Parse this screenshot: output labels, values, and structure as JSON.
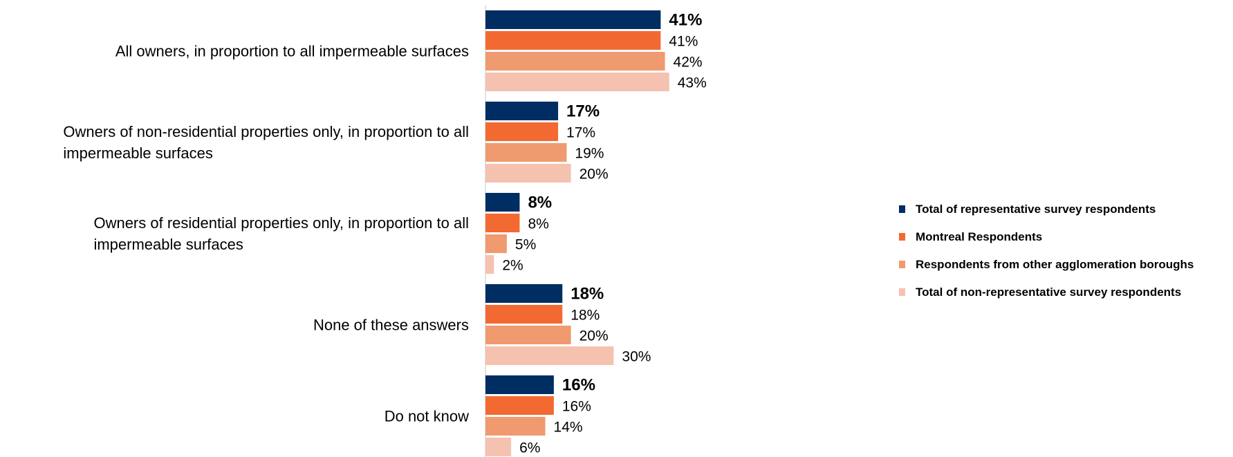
{
  "chart_data": {
    "type": "bar",
    "orientation": "horizontal",
    "categories": [
      "All owners, in proportion to all impermeable surfaces",
      "Owners of non-residential properties only, in proportion to all impermeable surfaces",
      "Owners of residential properties only, in proportion to all impermeable surfaces",
      "None of these answers",
      "Do not know"
    ],
    "category_lines": [
      [
        "All owners, in proportion to all impermeable surfaces"
      ],
      [
        "Owners of non-residential properties only, in proportion to all",
        "impermeable surfaces"
      ],
      [
        "Owners of residential properties only, in proportion to all",
        "impermeable surfaces"
      ],
      [
        "None of these answers"
      ],
      [
        "Do not know"
      ]
    ],
    "series": [
      {
        "name": "Total of representative survey respondents",
        "color": "#002d62",
        "values": [
          41,
          17,
          8,
          18,
          16
        ],
        "labels": [
          "41%",
          "17%",
          "8%",
          "18%",
          "16%"
        ],
        "bold": true
      },
      {
        "name": "Montreal Respondents",
        "color": "#f26a32",
        "values": [
          41,
          17,
          8,
          18,
          16
        ],
        "labels": [
          "41%",
          "17%",
          "8%",
          "18%",
          "16%"
        ],
        "bold": false
      },
      {
        "name": "Respondents from other agglomeration boroughs",
        "color": "#f09a70",
        "values": [
          42,
          19,
          5,
          20,
          14
        ],
        "labels": [
          "42%",
          "19%",
          "5%",
          "20%",
          "14%"
        ],
        "bold": false
      },
      {
        "name": "Total of non-representative survey respondents",
        "color": "#f5c2b0",
        "values": [
          43,
          20,
          2,
          30,
          6
        ],
        "labels": [
          "43%",
          "20%",
          "2%",
          "30%",
          "6%"
        ],
        "bold": false
      }
    ],
    "xlim": [
      0,
      100
    ],
    "unit": "%",
    "grid": false,
    "legend_position": "right"
  }
}
